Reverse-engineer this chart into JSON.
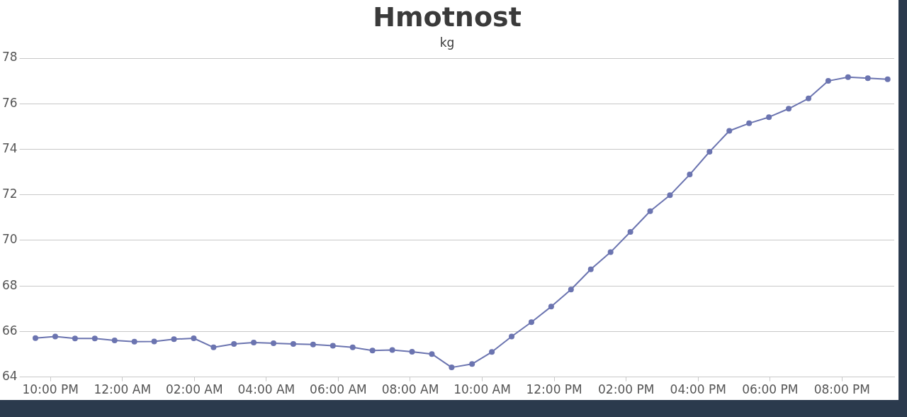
{
  "chart_data": {
    "type": "line",
    "title": "Hmotnost",
    "subtitle": "kg",
    "x": [
      "2000-01-01T21:35",
      "2000-01-01T22:08",
      "2000-01-01T22:41",
      "2000-01-01T23:14",
      "2000-01-01T23:47",
      "2000-01-02T00:20",
      "2000-01-02T00:53",
      "2000-01-02T01:26",
      "2000-01-02T01:59",
      "2000-01-02T02:32",
      "2000-01-02T03:06",
      "2000-01-02T03:39",
      "2000-01-02T04:12",
      "2000-01-02T04:45",
      "2000-01-02T05:18",
      "2000-01-02T05:51",
      "2000-01-02T06:24",
      "2000-01-02T06:57",
      "2000-01-02T07:30",
      "2000-01-02T08:03",
      "2000-01-02T08:36",
      "2000-01-02T09:09",
      "2000-01-02T09:43",
      "2000-01-02T10:16",
      "2000-01-02T10:49",
      "2000-01-02T11:22",
      "2000-01-02T11:55",
      "2000-01-02T12:28",
      "2000-01-02T13:01",
      "2000-01-02T13:34",
      "2000-01-02T14:07",
      "2000-01-02T14:40",
      "2000-01-02T15:13",
      "2000-01-02T15:46",
      "2000-01-02T16:19",
      "2000-01-02T16:52",
      "2000-01-02T17:25",
      "2000-01-02T17:58",
      "2000-01-02T18:31",
      "2000-01-02T19:04",
      "2000-01-02T19:37",
      "2000-01-02T20:10",
      "2000-01-02T20:43",
      "2000-01-02T21:16"
    ],
    "series": [
      {
        "color": "#6b74b0",
        "values": [
          65.71,
          65.78,
          65.69,
          65.69,
          65.61,
          65.55,
          65.56,
          65.66,
          65.7,
          65.3,
          65.45,
          65.51,
          65.48,
          65.45,
          65.43,
          65.37,
          65.3,
          65.16,
          65.19,
          65.11,
          65.01,
          64.42,
          64.57,
          65.1,
          65.78,
          66.41,
          67.09,
          67.84,
          68.73,
          69.48,
          70.37,
          71.28,
          71.98,
          72.89,
          73.89,
          74.81,
          75.14,
          75.41,
          75.78,
          76.23,
          77.0,
          77.17,
          77.12,
          77.07
        ]
      }
    ],
    "xlim": [
      "2000-01-01T21:18",
      "2000-01-02T21:27"
    ],
    "xticks": [
      {
        "value": "2000-01-01T22:00",
        "label": "10:00 PM"
      },
      {
        "value": "2000-01-02T00:00",
        "label": "12:00 AM"
      },
      {
        "value": "2000-01-02T02:00",
        "label": "02:00 AM"
      },
      {
        "value": "2000-01-02T04:00",
        "label": "04:00 AM"
      },
      {
        "value": "2000-01-02T06:00",
        "label": "06:00 AM"
      },
      {
        "value": "2000-01-02T08:00",
        "label": "08:00 AM"
      },
      {
        "value": "2000-01-02T10:00",
        "label": "10:00 AM"
      },
      {
        "value": "2000-01-02T12:00",
        "label": "12:00 PM"
      },
      {
        "value": "2000-01-02T14:00",
        "label": "02:00 PM"
      },
      {
        "value": "2000-01-02T16:00",
        "label": "04:00 PM"
      },
      {
        "value": "2000-01-02T18:00",
        "label": "06:00 PM"
      },
      {
        "value": "2000-01-02T20:00",
        "label": "08:00 PM"
      }
    ],
    "ylim": [
      64,
      78
    ],
    "yticks": [
      64,
      66,
      68,
      70,
      72,
      74,
      76,
      78
    ],
    "grid": "y",
    "legend": false,
    "marker": "circle",
    "line_style": "solid"
  }
}
